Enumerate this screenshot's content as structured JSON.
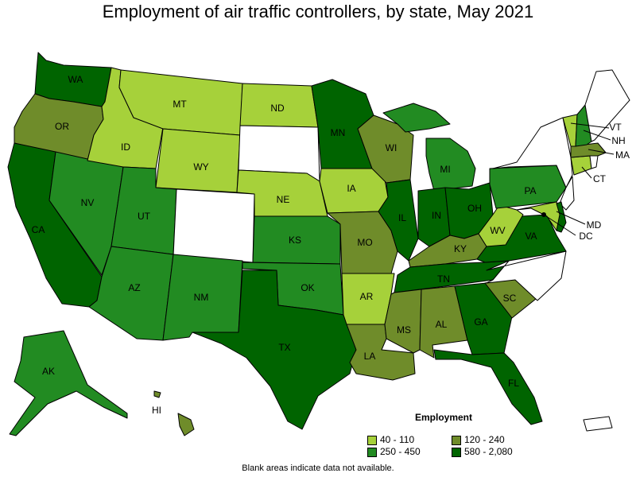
{
  "title": "Employment of air traffic controllers, by state, May 2021",
  "colors": {
    "c1": "#a6d13a",
    "c2": "#6f8c2a",
    "c3": "#228b22",
    "c4": "#006400",
    "none": "#ffffff"
  },
  "legend": {
    "title": "Employment",
    "items": [
      {
        "label": "40 - 110",
        "color": "#a6d13a"
      },
      {
        "label": "120 - 240",
        "color": "#6f8c2a"
      },
      {
        "label": "250 - 450",
        "color": "#228b22"
      },
      {
        "label": "580 - 2,080",
        "color": "#006400"
      }
    ]
  },
  "footnote": "Blank areas indicate data not available.",
  "states": {
    "WA": {
      "label": "WA",
      "class": "c4"
    },
    "OR": {
      "label": "OR",
      "class": "c2"
    },
    "CA": {
      "label": "CA",
      "class": "c4"
    },
    "NV": {
      "label": "NV",
      "class": "c3"
    },
    "ID": {
      "label": "ID",
      "class": "c1"
    },
    "MT": {
      "label": "MT",
      "class": "c1"
    },
    "WY": {
      "label": "WY",
      "class": "c1"
    },
    "UT": {
      "label": "UT",
      "class": "c3"
    },
    "AZ": {
      "label": "AZ",
      "class": "c3"
    },
    "CO": {
      "label": "",
      "class": "none"
    },
    "NM": {
      "label": "NM",
      "class": "c3"
    },
    "ND": {
      "label": "ND",
      "class": "c1"
    },
    "SD": {
      "label": "",
      "class": "none"
    },
    "NE": {
      "label": "NE",
      "class": "c1"
    },
    "KS": {
      "label": "KS",
      "class": "c3"
    },
    "OK": {
      "label": "OK",
      "class": "c3"
    },
    "TX": {
      "label": "TX",
      "class": "c4"
    },
    "MN": {
      "label": "MN",
      "class": "c4"
    },
    "IA": {
      "label": "IA",
      "class": "c1"
    },
    "MO": {
      "label": "MO",
      "class": "c2"
    },
    "AR": {
      "label": "AR",
      "class": "c1"
    },
    "LA": {
      "label": "LA",
      "class": "c2"
    },
    "WI": {
      "label": "WI",
      "class": "c2"
    },
    "IL": {
      "label": "IL",
      "class": "c4"
    },
    "MI": {
      "label": "MI",
      "class": "c3"
    },
    "IN": {
      "label": "IN",
      "class": "c4"
    },
    "OH": {
      "label": "OH",
      "class": "c4"
    },
    "KY": {
      "label": "KY",
      "class": "c2"
    },
    "TN": {
      "label": "TN",
      "class": "c4"
    },
    "MS": {
      "label": "MS",
      "class": "c2"
    },
    "AL": {
      "label": "AL",
      "class": "c2"
    },
    "GA": {
      "label": "GA",
      "class": "c4"
    },
    "FL": {
      "label": "FL",
      "class": "c4"
    },
    "SC": {
      "label": "SC",
      "class": "c2"
    },
    "NC": {
      "label": "",
      "class": "none"
    },
    "VA": {
      "label": "VA",
      "class": "c4"
    },
    "WV": {
      "label": "WV",
      "class": "c1"
    },
    "PA": {
      "label": "PA",
      "class": "c3"
    },
    "NY": {
      "label": "",
      "class": "none"
    },
    "NJ": {
      "label": "",
      "class": "none"
    },
    "DE": {
      "label": "",
      "class": "c4"
    },
    "MD": {
      "label": "MD",
      "class": "c1"
    },
    "DC": {
      "label": "DC",
      "class": "c4"
    },
    "CT": {
      "label": "CT",
      "class": "c1"
    },
    "RI": {
      "label": "",
      "class": "none"
    },
    "MA": {
      "label": "MA",
      "class": "c2"
    },
    "VT": {
      "label": "VT",
      "class": "c1"
    },
    "NH": {
      "label": "NH",
      "class": "c3"
    },
    "ME": {
      "label": "",
      "class": "none"
    },
    "AK": {
      "label": "AK",
      "class": "c3"
    },
    "HI": {
      "label": "HI",
      "class": "c2"
    },
    "PR": {
      "label": "",
      "class": "none"
    }
  }
}
